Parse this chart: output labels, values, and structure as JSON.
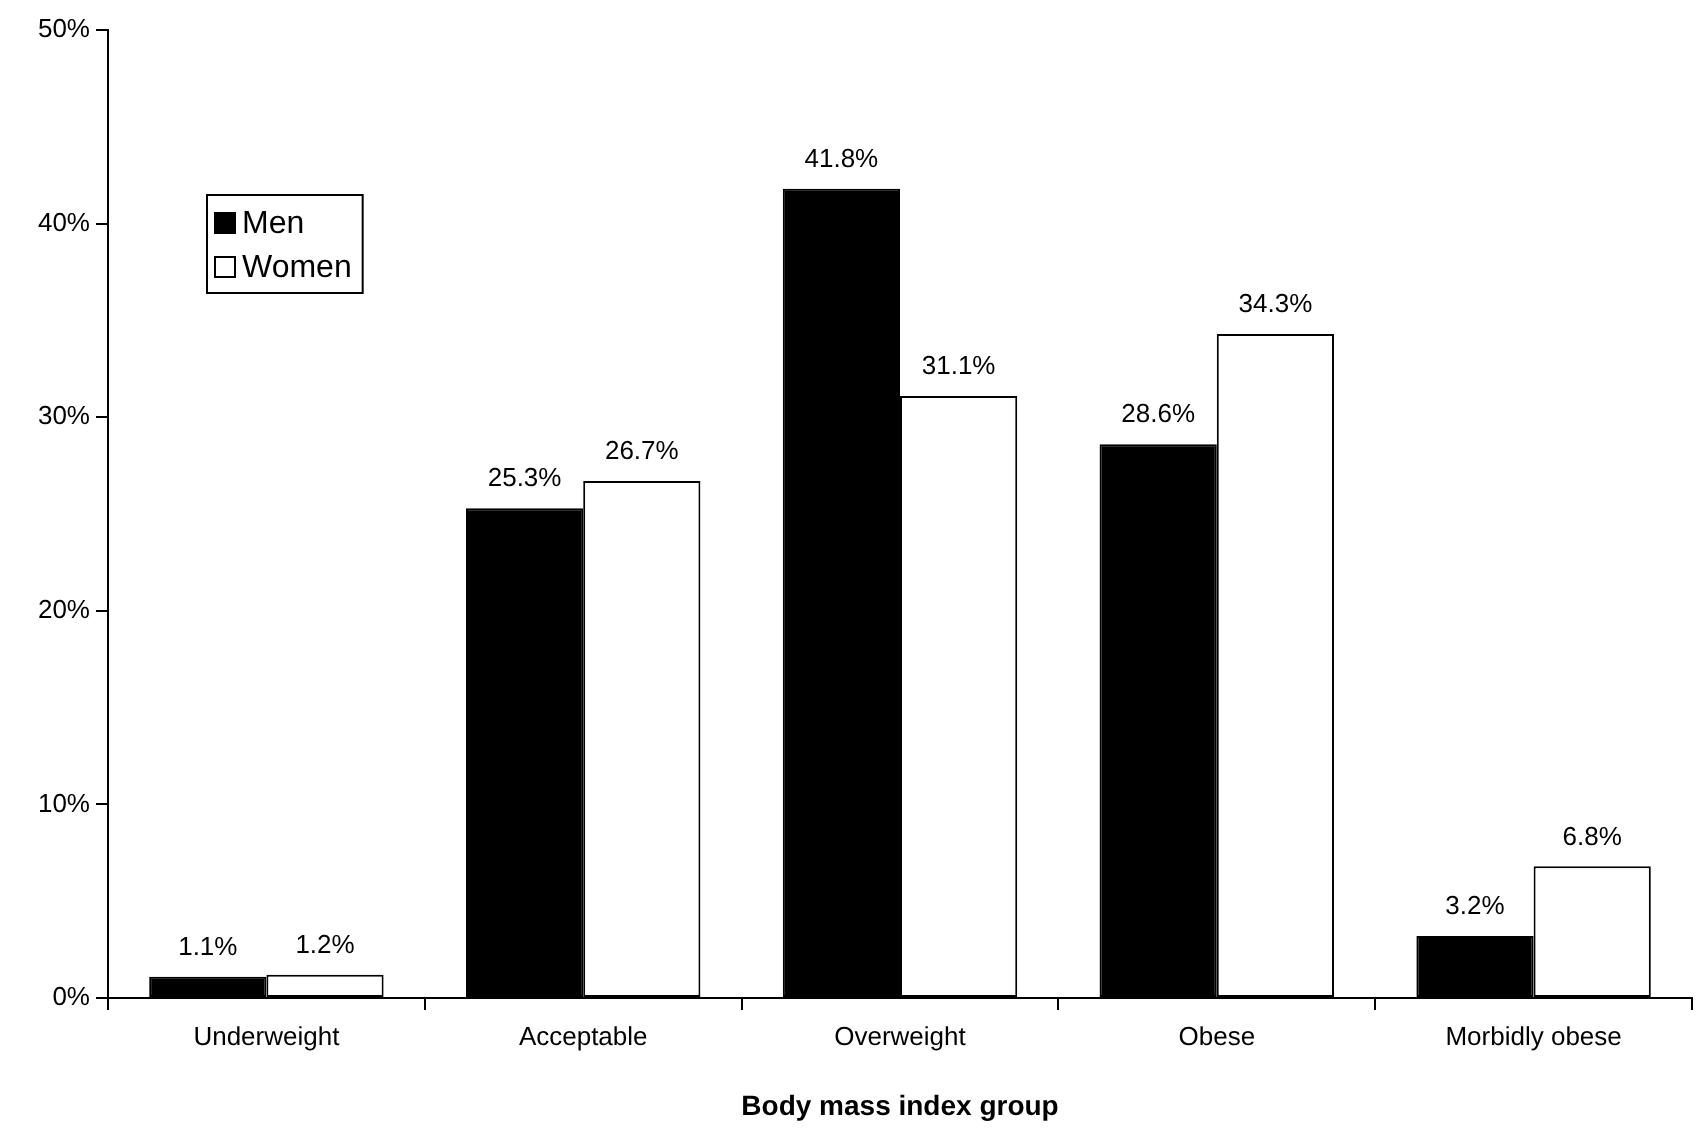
{
  "chart_data": {
    "type": "bar",
    "xlabel": "Body mass index group",
    "categories": [
      "Underweight",
      "Acceptable",
      "Overweight",
      "Obese",
      "Morbidly obese"
    ],
    "series": [
      {
        "name": "Men",
        "color": "#000000",
        "values": [
          1.1,
          25.3,
          41.8,
          28.6,
          3.2
        ],
        "value_labels": [
          "1.1%",
          "25.3%",
          "41.8%",
          "28.6%",
          "3.2%"
        ]
      },
      {
        "name": "Women",
        "color": "#ffffff",
        "values": [
          1.2,
          26.7,
          31.1,
          34.3,
          6.8
        ],
        "value_labels": [
          "1.2%",
          "26.7%",
          "31.1%",
          "34.3%",
          "6.8%"
        ]
      }
    ],
    "ylim": [
      0,
      50
    ],
    "yticks": [
      {
        "value": 0,
        "label": "0%"
      },
      {
        "value": 10,
        "label": "10%"
      },
      {
        "value": 20,
        "label": "20%"
      },
      {
        "value": 30,
        "label": "30%"
      },
      {
        "value": 40,
        "label": "40%"
      },
      {
        "value": 50,
        "label": "50%"
      }
    ],
    "legend": "top left"
  }
}
